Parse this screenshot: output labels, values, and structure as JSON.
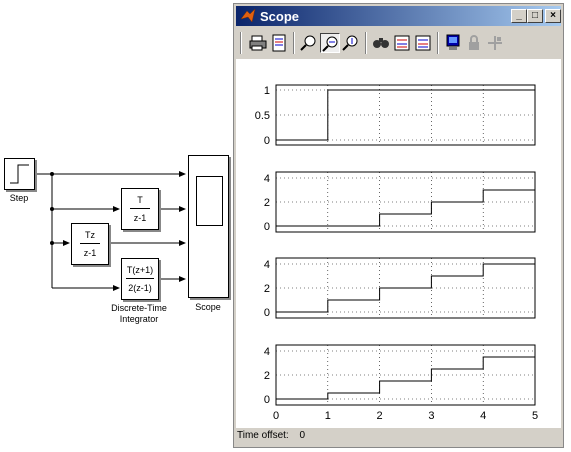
{
  "model": {
    "step_label": "Step",
    "integrator_label": "Discrete-Time\nIntegrator",
    "scope_label": "Scope",
    "block1": {
      "num": "T",
      "den": "z-1"
    },
    "block2": {
      "num": "Tz",
      "den": "z-1"
    },
    "block3": {
      "num": "T(z+1)",
      "den": "2(z-1)"
    }
  },
  "scope_window": {
    "title": "Scope",
    "title_icon": "matlab-logo-icon",
    "controls": [
      "minimize-icon",
      "maximize-icon",
      "close-icon"
    ],
    "toolbar_icons": [
      "print-icon",
      "parameters-icon",
      "zoom-icon",
      "zoom-x-icon",
      "zoom-y-icon",
      "autoscale-icon",
      "save-axes-icon",
      "restore-axes-icon",
      "floating-scope-icon",
      "lock-axes-icon",
      "signal-selection-icon"
    ],
    "time_offset_label": "Time offset:",
    "time_offset_value": "0"
  },
  "chart_data": [
    {
      "type": "line",
      "x": [
        0,
        1,
        1,
        5
      ],
      "y": [
        0,
        0,
        1,
        1
      ],
      "xlim": [
        0,
        5
      ],
      "ylim": [
        -0.1,
        1.1
      ],
      "yticks": [
        0,
        0.5,
        1
      ],
      "ytick_labels": [
        "0",
        "0.5",
        "1"
      ],
      "grid": true
    },
    {
      "type": "line",
      "x": [
        0,
        2,
        2,
        3,
        3,
        4,
        4,
        5
      ],
      "y": [
        0,
        0,
        1,
        1,
        2,
        2,
        3,
        3
      ],
      "xlim": [
        0,
        5
      ],
      "ylim": [
        -0.5,
        4.5
      ],
      "yticks": [
        0,
        2,
        4
      ],
      "ytick_labels": [
        "0",
        "2",
        "4"
      ],
      "grid": true
    },
    {
      "type": "line",
      "x": [
        0,
        1,
        1,
        2,
        2,
        3,
        3,
        4,
        4,
        5
      ],
      "y": [
        0,
        0,
        1,
        1,
        2,
        2,
        3,
        3,
        4,
        4
      ],
      "xlim": [
        0,
        5
      ],
      "ylim": [
        -0.5,
        4.5
      ],
      "yticks": [
        0,
        2,
        4
      ],
      "ytick_labels": [
        "0",
        "2",
        "4"
      ],
      "grid": true
    },
    {
      "type": "line",
      "x": [
        0,
        1,
        1,
        2,
        2,
        3,
        3,
        4,
        4,
        5
      ],
      "y": [
        0,
        0,
        0.5,
        0.5,
        1.5,
        1.5,
        2.5,
        2.5,
        3.5,
        3.5
      ],
      "xlim": [
        0,
        5
      ],
      "ylim": [
        -0.5,
        4.5
      ],
      "yticks": [
        0,
        2,
        4
      ],
      "ytick_labels": [
        "0",
        "2",
        "4"
      ],
      "xticks": [
        0,
        1,
        2,
        3,
        4,
        5
      ],
      "xtick_labels": [
        "0",
        "1",
        "2",
        "3",
        "4",
        "5"
      ],
      "grid": true
    }
  ]
}
